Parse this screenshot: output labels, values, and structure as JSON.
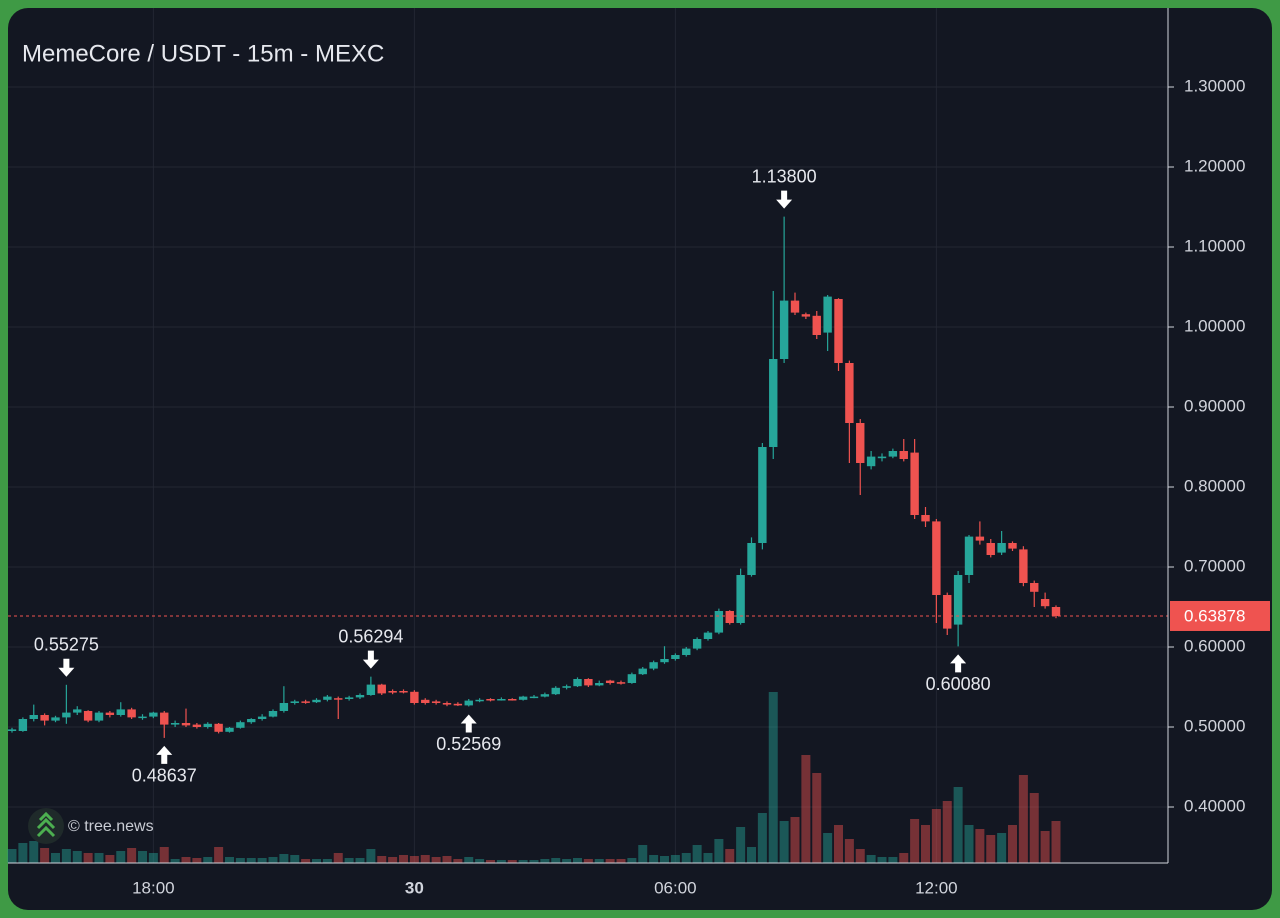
{
  "chart_data": {
    "type": "candlestick",
    "title": "MemeCore / USDT - 15m - MEXC",
    "watermark": "© tree.news",
    "up_color": "#26a69a",
    "down_color": "#ef5350",
    "grid": true,
    "categories": [
      null,
      null,
      null,
      null,
      null,
      null,
      null,
      null,
      null,
      null,
      null,
      null,
      null,
      "18:00",
      null,
      null,
      null,
      null,
      null,
      null,
      null,
      null,
      null,
      null,
      null,
      null,
      null,
      null,
      null,
      null,
      null,
      null,
      null,
      null,
      null,
      null,
      null,
      "30",
      null,
      null,
      null,
      null,
      null,
      null,
      null,
      null,
      null,
      null,
      null,
      null,
      null,
      null,
      null,
      null,
      null,
      null,
      null,
      null,
      null,
      null,
      null,
      "06:00",
      null,
      null,
      null,
      null,
      null,
      null,
      null,
      null,
      null,
      null,
      null,
      null,
      null,
      null,
      null,
      null,
      null,
      null,
      null,
      null,
      null,
      null,
      null,
      "12:00",
      null,
      null,
      null,
      null,
      null,
      null,
      null,
      null,
      null,
      null,
      null
    ],
    "open": [
      0.495,
      0.495,
      0.51,
      0.515,
      0.508,
      0.512,
      0.518,
      0.52,
      0.508,
      0.518,
      0.515,
      0.522,
      0.512,
      0.513,
      0.518,
      0.503,
      0.505,
      0.503,
      0.5,
      0.504,
      0.494,
      0.499,
      0.506,
      0.51,
      0.513,
      0.52,
      0.53,
      0.532,
      0.531,
      0.534,
      0.536,
      0.535,
      0.537,
      0.54,
      0.553,
      0.545,
      0.545,
      0.544,
      0.534,
      0.532,
      0.53,
      0.529,
      0.527,
      0.533,
      0.535,
      0.534,
      0.535,
      0.534,
      0.537,
      0.538,
      0.541,
      0.549,
      0.551,
      0.56,
      0.552,
      0.558,
      0.556,
      0.555,
      0.566,
      0.573,
      0.581,
      0.585,
      0.59,
      0.598,
      0.61,
      0.618,
      0.645,
      0.63,
      0.69,
      0.73,
      0.85,
      0.96,
      1.033,
      1.016,
      1.014,
      0.993,
      1.035,
      0.955,
      0.88,
      0.826,
      0.836,
      0.838,
      0.845,
      0.843,
      0.765,
      0.757,
      0.665,
      0.628,
      0.69,
      0.738,
      0.73,
      0.718,
      0.73,
      0.722,
      0.68,
      0.66,
      0.65
    ],
    "high": [
      0.499,
      0.512,
      0.528,
      0.517,
      0.514,
      0.55275,
      0.526,
      0.521,
      0.52,
      0.52,
      0.531,
      0.524,
      0.516,
      0.519,
      0.52,
      0.508,
      0.523,
      0.505,
      0.506,
      0.505,
      0.5,
      0.508,
      0.511,
      0.516,
      0.522,
      0.551,
      0.534,
      0.534,
      0.536,
      0.54,
      0.538,
      0.539,
      0.542,
      0.56294,
      0.554,
      0.547,
      0.547,
      0.546,
      0.536,
      0.534,
      0.532,
      0.531,
      0.535,
      0.536,
      0.536,
      0.537,
      0.536,
      0.539,
      0.54,
      0.543,
      0.551,
      0.553,
      0.562,
      0.561,
      0.558,
      0.559,
      0.558,
      0.568,
      0.575,
      0.583,
      0.601,
      0.592,
      0.6,
      0.612,
      0.62,
      0.648,
      0.646,
      0.698,
      0.737,
      0.855,
      1.045,
      1.138,
      1.043,
      1.018,
      1.02,
      1.04,
      1.036,
      0.958,
      0.885,
      0.845,
      0.842,
      0.848,
      0.86,
      0.86,
      0.775,
      0.76,
      0.668,
      0.695,
      0.74,
      0.757,
      0.735,
      0.745,
      0.732,
      0.726,
      0.683,
      0.668,
      0.652
    ],
    "low": [
      0.493,
      0.494,
      0.507,
      0.502,
      0.506,
      0.504,
      0.515,
      0.506,
      0.506,
      0.512,
      0.513,
      0.51,
      0.509,
      0.511,
      0.48637,
      0.5,
      0.5,
      0.498,
      0.498,
      0.492,
      0.493,
      0.498,
      0.504,
      0.508,
      0.512,
      0.518,
      0.528,
      0.529,
      0.53,
      0.532,
      0.51,
      0.533,
      0.535,
      0.539,
      0.54,
      0.541,
      0.542,
      0.528,
      0.528,
      0.528,
      0.526,
      0.5262,
      0.52569,
      0.531,
      0.532,
      0.533,
      0.533,
      0.533,
      0.536,
      0.537,
      0.54,
      0.547,
      0.55,
      0.55,
      0.551,
      0.553,
      0.553,
      0.554,
      0.565,
      0.571,
      0.579,
      0.583,
      0.588,
      0.596,
      0.608,
      0.616,
      0.628,
      0.628,
      0.688,
      0.722,
      0.835,
      0.955,
      1.015,
      1.01,
      0.985,
      0.97,
      0.945,
      0.83,
      0.79,
      0.822,
      0.832,
      0.836,
      0.832,
      0.76,
      0.75,
      0.63,
      0.615,
      0.6008,
      0.68,
      0.728,
      0.712,
      0.715,
      0.72,
      0.676,
      0.65,
      0.648,
      0.636
    ],
    "close": [
      0.497,
      0.51,
      0.515,
      0.508,
      0.512,
      0.518,
      0.522,
      0.508,
      0.518,
      0.515,
      0.522,
      0.512,
      0.513,
      0.518,
      0.503,
      0.505,
      0.502,
      0.5,
      0.504,
      0.494,
      0.499,
      0.506,
      0.51,
      0.513,
      0.52,
      0.53,
      0.532,
      0.531,
      0.534,
      0.538,
      0.535,
      0.537,
      0.54,
      0.553,
      0.542,
      0.543,
      0.544,
      0.53,
      0.53,
      0.53,
      0.528,
      0.527,
      0.533,
      0.534,
      0.534,
      0.535,
      0.534,
      0.538,
      0.538,
      0.541,
      0.549,
      0.551,
      0.56,
      0.552,
      0.555,
      0.555,
      0.555,
      0.566,
      0.573,
      0.581,
      0.585,
      0.59,
      0.598,
      0.61,
      0.618,
      0.645,
      0.63,
      0.69,
      0.73,
      0.85,
      0.96,
      1.033,
      1.018,
      1.013,
      0.99,
      1.038,
      0.955,
      0.88,
      0.83,
      0.838,
      0.838,
      0.845,
      0.835,
      0.765,
      0.757,
      0.665,
      0.623,
      0.69,
      0.738,
      0.733,
      0.715,
      0.73,
      0.723,
      0.68,
      0.669,
      0.651,
      0.63878
    ],
    "volume": [
      14,
      20,
      22,
      15,
      10,
      14,
      12,
      10,
      10,
      8,
      12,
      15,
      12,
      10,
      16,
      4,
      6,
      5,
      6,
      16,
      6,
      5,
      5,
      5,
      6,
      9,
      8,
      4,
      4,
      4,
      10,
      5,
      5,
      14,
      7,
      6,
      8,
      7,
      8,
      6,
      7,
      4,
      6,
      4,
      3,
      3,
      3,
      3,
      3,
      4,
      5,
      4,
      5,
      4,
      4,
      4,
      4,
      5,
      18,
      8,
      7,
      8,
      10,
      18,
      10,
      24,
      14,
      36,
      16,
      50,
      171,
      42,
      46,
      108,
      90,
      30,
      38,
      24,
      14,
      8,
      6,
      6,
      10,
      44,
      38,
      54,
      62,
      76,
      38,
      34,
      28,
      30,
      38,
      88,
      70,
      32,
      42
    ],
    "ylim": [
      0.33,
      1.39875
    ],
    "yticks": [
      {
        "value": 0.4,
        "label": "0.40000"
      },
      {
        "value": 0.5,
        "label": "0.50000"
      },
      {
        "value": 0.6,
        "label": "0.60000"
      },
      {
        "value": 0.7,
        "label": "0.70000"
      },
      {
        "value": 0.8,
        "label": "0.80000"
      },
      {
        "value": 0.9,
        "label": "0.90000"
      },
      {
        "value": 1.0,
        "label": "1.00000"
      },
      {
        "value": 1.1,
        "label": "1.10000"
      },
      {
        "value": 1.2,
        "label": "1.20000"
      },
      {
        "value": 1.3,
        "label": "1.30000"
      }
    ],
    "last_price": {
      "value": 0.63878,
      "label": "0.63878"
    },
    "annotations": [
      {
        "index": 5,
        "value": 0.55275,
        "label": "0.55275"
      },
      {
        "index": 14,
        "value": 0.48637,
        "label": "0.48637"
      },
      {
        "index": 33,
        "value": 0.56294,
        "label": "0.56294"
      },
      {
        "index": 42,
        "value": 0.52569,
        "label": "0.52569"
      },
      {
        "index": 71,
        "value": 1.138,
        "label": "1.13800"
      },
      {
        "index": 87,
        "value": 0.6008,
        "label": "0.60080"
      }
    ]
  }
}
